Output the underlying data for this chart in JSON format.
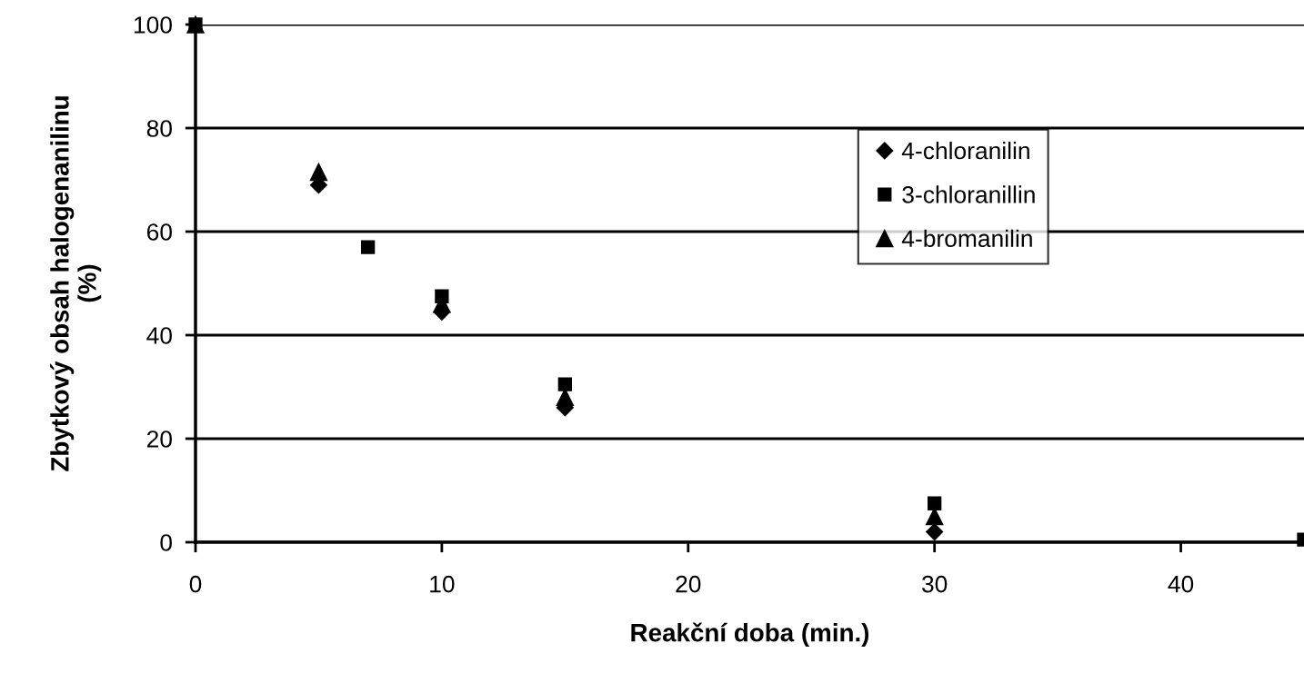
{
  "chart_data": {
    "type": "scatter",
    "xlabel": "Reakční doba (min.)",
    "ylabel": "Zbytkový obsah halogenanilinu\n(%)",
    "xlim": [
      0,
      45
    ],
    "xticks": [
      0,
      10,
      20,
      30,
      40
    ],
    "ylim": [
      0,
      100
    ],
    "yticks": [
      0,
      20,
      40,
      60,
      80,
      100
    ],
    "grid": "y",
    "legend": "top right",
    "series": [
      {
        "name": "4-chloranilin",
        "color": "#000000",
        "marker": "diamond",
        "x": [
          5,
          10,
          15,
          30
        ],
        "values": [
          69,
          44.5,
          26,
          2
        ]
      },
      {
        "name": "3-chloranillin",
        "color": "#000000",
        "marker": "square",
        "x": [
          0,
          7,
          10,
          15,
          30,
          45
        ],
        "values": [
          100,
          57,
          47.5,
          30.5,
          7.5,
          0.5
        ]
      },
      {
        "name": "4-bromanilin",
        "color": "#000000",
        "marker": "triangle",
        "x": [
          0,
          5,
          10,
          15,
          30
        ],
        "values": [
          100,
          71.5,
          46,
          28,
          5
        ]
      }
    ]
  }
}
